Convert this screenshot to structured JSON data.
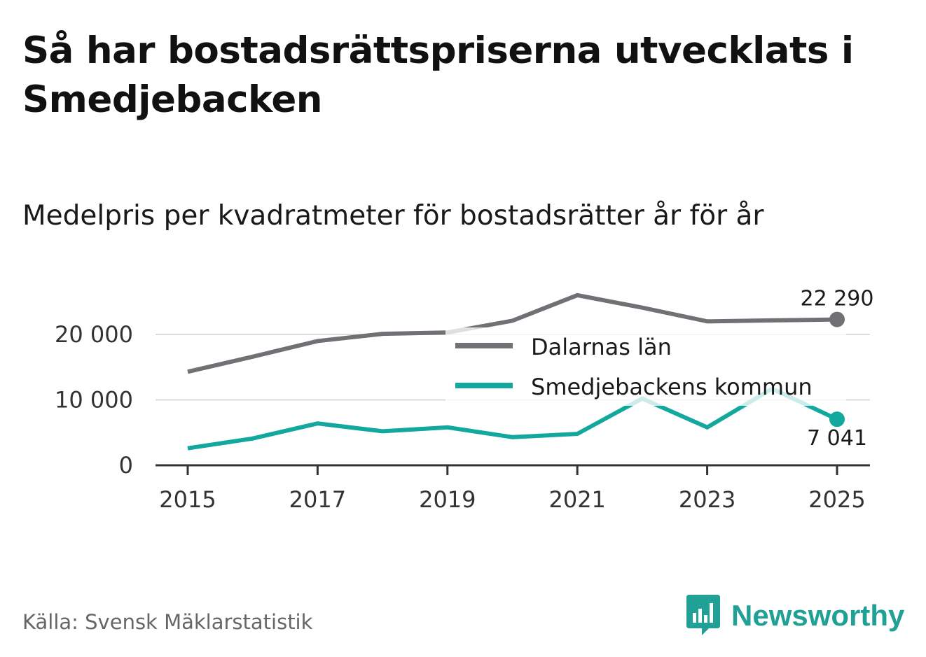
{
  "header": {
    "title": "Så har bostadsrättspriserna utvecklats i Smedjebacken",
    "subtitle": "Medelpris per kvadratmeter för bostadsrätter år för år"
  },
  "footer": {
    "source": "Källa: Svensk Mäklarstatistik",
    "brand": "Newsworthy"
  },
  "colors": {
    "dalarna": "#707075",
    "smedjebacken": "#13a89e",
    "grid": "#dcdcdc",
    "axis": "#333333",
    "brand": "#21a096"
  },
  "chart_data": {
    "type": "line",
    "title": "Medelpris per kvadratmeter för bostadsrätter år för år",
    "xlabel": "",
    "ylabel": "",
    "x": [
      2015,
      2016,
      2017,
      2018,
      2019,
      2020,
      2021,
      2022,
      2023,
      2024,
      2025
    ],
    "x_ticks": [
      "2015",
      "2017",
      "2019",
      "2021",
      "2023",
      "2025"
    ],
    "y_ticks": [
      "0",
      "10 000",
      "20 000"
    ],
    "ylim": [
      0,
      26000
    ],
    "grid": true,
    "legend_position": "right",
    "series": [
      {
        "name": "Dalarnas län",
        "values": [
          14300,
          16600,
          19000,
          20100,
          20300,
          22100,
          26000,
          24100,
          22000,
          22150,
          22290
        ],
        "end_label": "22 290"
      },
      {
        "name": "Smedjebackens kommun",
        "values": [
          2600,
          4100,
          6400,
          5200,
          5800,
          4300,
          4800,
          10200,
          5800,
          11700,
          7041
        ],
        "end_label": "7 041"
      }
    ]
  }
}
